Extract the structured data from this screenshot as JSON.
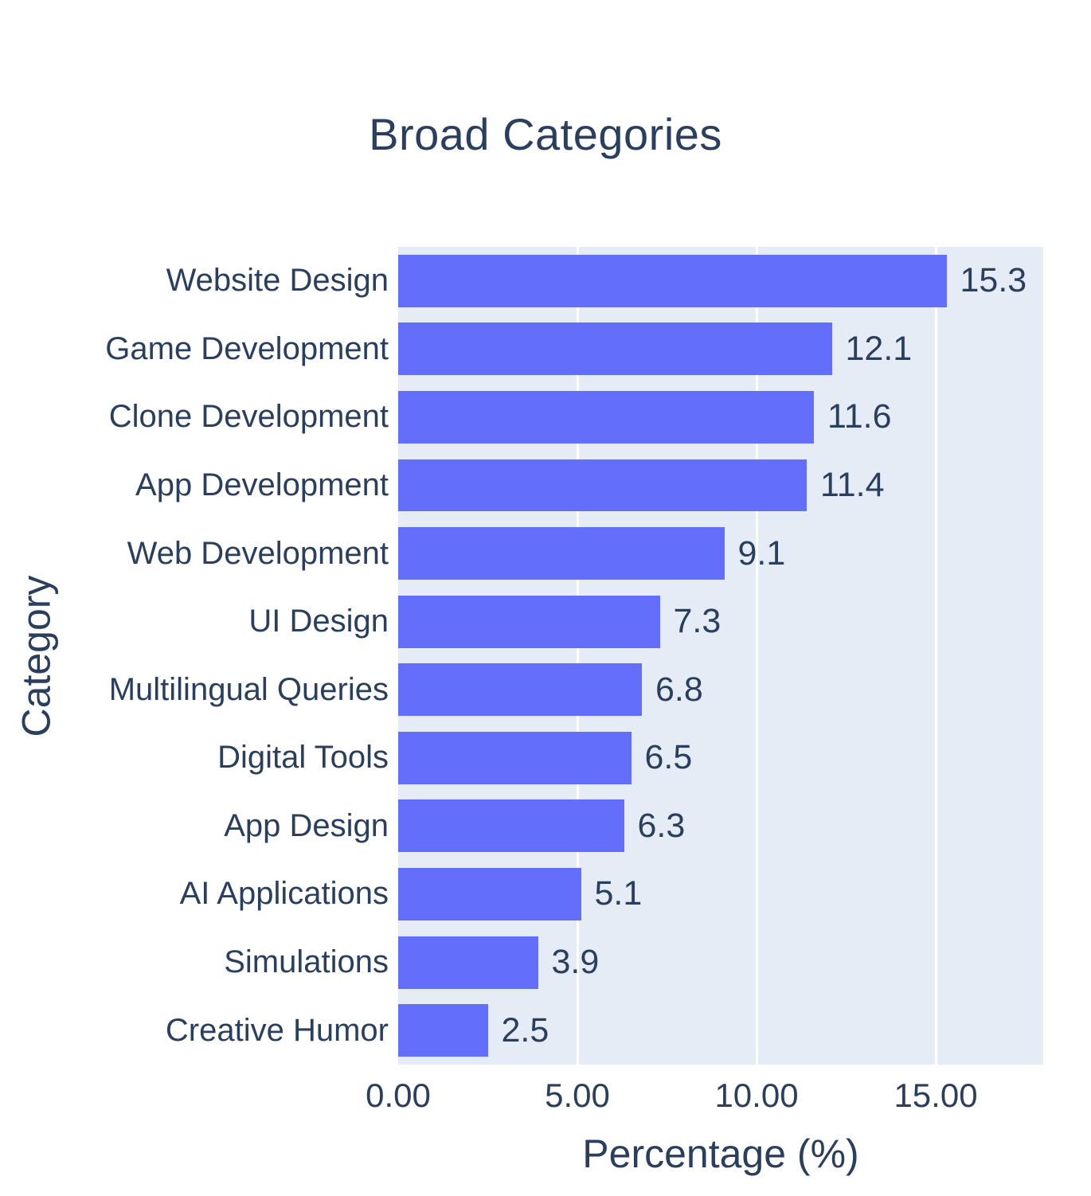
{
  "chart": {
    "title": "Broad Categories",
    "xlabel": "Percentage (%)",
    "ylabel": "Category"
  },
  "chart_data": {
    "type": "bar",
    "orientation": "horizontal",
    "title": "Broad Categories",
    "xlabel": "Percentage (%)",
    "ylabel": "Category",
    "categories": [
      "Website Design",
      "Game Development",
      "Clone Development",
      "App Development",
      "Web Development",
      "UI Design",
      "Multilingual Queries",
      "Digital Tools",
      "App Design",
      "AI Applications",
      "Simulations",
      "Creative Humor"
    ],
    "values": [
      15.3,
      12.1,
      11.6,
      11.4,
      9.1,
      7.3,
      6.8,
      6.5,
      6.3,
      5.1,
      3.9,
      2.5
    ],
    "value_labels": [
      "15.3",
      "12.1",
      "11.6",
      "11.4",
      "9.1",
      "7.3",
      "6.8",
      "6.5",
      "6.3",
      "5.1",
      "3.9",
      "2.5"
    ],
    "xlim": [
      0,
      18
    ],
    "x_ticks": [
      {
        "value": 0,
        "label": "0.00"
      },
      {
        "value": 5,
        "label": "5.00"
      },
      {
        "value": 10,
        "label": "10.00"
      },
      {
        "value": 15,
        "label": "15.00"
      }
    ],
    "grid": true,
    "legend": "none",
    "colors": {
      "bar": "#636EFA",
      "plot_background": "#E5ECF6",
      "paper_background": "#FFFFFF",
      "text": "#2a3f5f",
      "gridline": "#FFFFFF"
    }
  }
}
